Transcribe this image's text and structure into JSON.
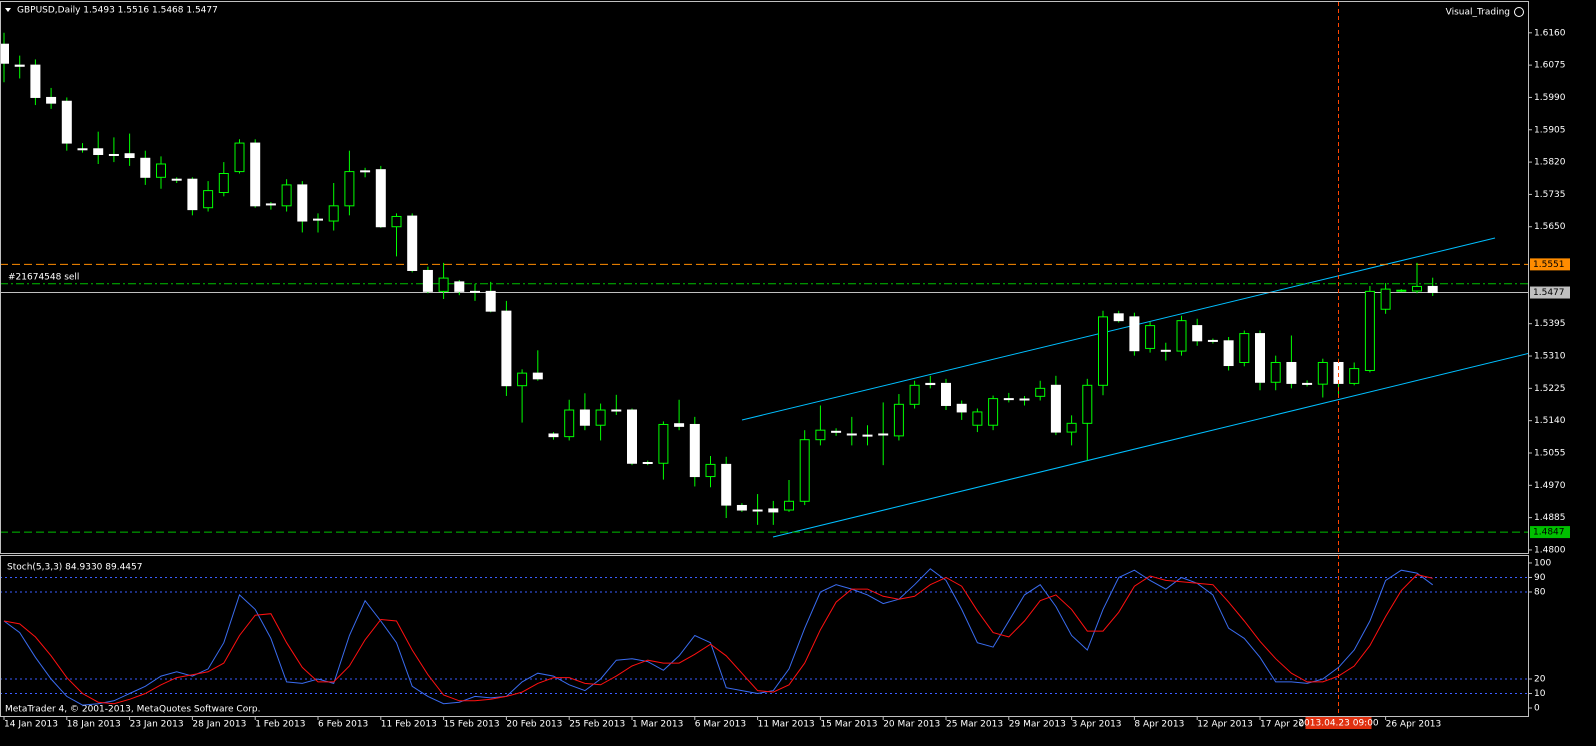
{
  "chart_data": [
    {
      "type": "candlestick",
      "title": "GBPUSD,Daily  1.5493 1.5516 1.5468 1.5477",
      "expert_label": "Visual_Trading",
      "cursor_label": "2013.04.23 09:00",
      "categories": [
        "14 Jan 2013",
        null,
        null,
        null,
        "18 Jan 2013",
        null,
        null,
        null,
        "23 Jan 2013",
        null,
        null,
        null,
        "28 Jan 2013",
        null,
        null,
        null,
        "1 Feb 2013",
        null,
        null,
        null,
        "6 Feb 2013",
        null,
        null,
        null,
        "11 Feb 2013",
        null,
        null,
        null,
        "15 Feb 2013",
        null,
        null,
        null,
        "20 Feb 2013",
        null,
        null,
        null,
        "25 Feb 2013",
        null,
        null,
        null,
        "1 Mar 2013",
        null,
        null,
        null,
        "6 Mar 2013",
        null,
        null,
        null,
        "11 Mar 2013",
        null,
        null,
        null,
        "15 Mar 2013",
        null,
        null,
        null,
        "20 Mar 2013",
        null,
        null,
        null,
        "25 Mar 2013",
        null,
        null,
        null,
        "29 Mar 2013",
        null,
        null,
        null,
        "3 Apr 2013",
        null,
        null,
        null,
        "8 Apr 2013",
        null,
        null,
        null,
        "12 Apr 2013",
        null,
        null,
        null,
        "17 Apr 2013",
        null,
        null,
        null,
        null,
        null,
        null,
        null,
        "26 Apr 2013",
        null,
        null,
        null
      ],
      "open": [
        1.613,
        1.6075,
        1.6075,
        1.599,
        1.598,
        1.5855,
        1.5855,
        1.584,
        1.5842,
        1.583,
        1.578,
        1.5775,
        1.5775,
        1.57,
        1.574,
        1.5795,
        1.587,
        1.571,
        1.5705,
        1.576,
        1.567,
        1.5665,
        1.5705,
        1.5797,
        1.58,
        1.565,
        1.5678,
        1.5535,
        1.548,
        1.5505,
        1.548,
        1.548,
        1.5428,
        1.5232,
        1.5265,
        1.5105,
        1.5098,
        1.5168,
        1.5128,
        1.5168,
        1.5168,
        1.503,
        1.5028,
        1.5132,
        1.513,
        1.4993,
        1.5025,
        1.4917,
        1.4905,
        1.4908,
        1.4905,
        1.4928,
        1.509,
        1.5112,
        1.5105,
        1.5102,
        1.5105,
        1.51,
        1.5183,
        1.5238,
        1.5238,
        1.5183,
        1.5128,
        1.5128,
        1.5198,
        1.5197,
        1.5204,
        1.5233,
        1.511,
        1.5133,
        1.5233,
        1.5421,
        1.5413,
        1.533,
        1.5325,
        1.5323,
        1.539,
        1.5351,
        1.535,
        1.5293,
        1.5369,
        1.5241,
        1.5293,
        1.5238,
        1.5236,
        1.5293,
        1.5238,
        1.5272,
        1.5433,
        1.5481,
        1.5481,
        1.5493
      ],
      "high": [
        1.616,
        1.61,
        1.609,
        1.6015,
        1.599,
        1.587,
        1.59,
        1.5885,
        1.5895,
        1.585,
        1.5835,
        1.578,
        1.578,
        1.577,
        1.582,
        1.588,
        1.588,
        1.5715,
        1.5775,
        1.577,
        1.5685,
        1.5765,
        1.585,
        1.5805,
        1.581,
        1.5685,
        1.5685,
        1.5545,
        1.5555,
        1.551,
        1.55,
        1.5505,
        1.5455,
        1.5275,
        1.5325,
        1.511,
        1.5195,
        1.5212,
        1.5185,
        1.5208,
        1.5172,
        1.5035,
        1.5138,
        1.5195,
        1.515,
        1.5047,
        1.5045,
        1.4923,
        1.4947,
        1.4929,
        1.4984,
        1.5115,
        1.518,
        1.512,
        1.515,
        1.5128,
        1.5188,
        1.521,
        1.5245,
        1.5258,
        1.525,
        1.5193,
        1.5172,
        1.5206,
        1.5213,
        1.5205,
        1.5245,
        1.5258,
        1.5154,
        1.525,
        1.5429,
        1.5429,
        1.5424,
        1.54,
        1.5345,
        1.5416,
        1.5408,
        1.5356,
        1.536,
        1.5377,
        1.5377,
        1.5311,
        1.5364,
        1.5246,
        1.5303,
        1.5303,
        1.5293,
        1.5494,
        1.5502,
        1.5486,
        1.5555,
        1.5516
      ],
      "low": [
        1.603,
        1.604,
        1.597,
        1.596,
        1.585,
        1.5845,
        1.5815,
        1.582,
        1.581,
        1.576,
        1.575,
        1.5765,
        1.568,
        1.569,
        1.573,
        1.579,
        1.57,
        1.5695,
        1.569,
        1.5635,
        1.5635,
        1.564,
        1.568,
        1.578,
        1.5647,
        1.5572,
        1.553,
        1.5475,
        1.546,
        1.547,
        1.5455,
        1.5425,
        1.5205,
        1.5135,
        1.5245,
        1.509,
        1.5088,
        1.5115,
        1.5088,
        1.5155,
        1.5023,
        1.5023,
        1.4985,
        1.5115,
        1.4967,
        1.4965,
        1.4884,
        1.49,
        1.4866,
        1.4866,
        1.49,
        1.4918,
        1.5075,
        1.51,
        1.5075,
        1.5075,
        1.5023,
        1.5088,
        1.5172,
        1.5225,
        1.5168,
        1.5142,
        1.511,
        1.5115,
        1.5188,
        1.518,
        1.5193,
        1.5102,
        1.5075,
        1.5035,
        1.5207,
        1.5398,
        1.5311,
        1.5319,
        1.5298,
        1.5311,
        1.5337,
        1.5343,
        1.5272,
        1.5283,
        1.522,
        1.522,
        1.5225,
        1.523,
        1.5201,
        1.5207,
        1.5233,
        1.5267,
        1.5421,
        1.5478,
        1.5475,
        1.5468
      ],
      "close": [
        1.608,
        1.6072,
        1.599,
        1.5975,
        1.587,
        1.5853,
        1.584,
        1.5838,
        1.5832,
        1.578,
        1.5815,
        1.5773,
        1.5695,
        1.5745,
        1.579,
        1.587,
        1.5705,
        1.5708,
        1.576,
        1.5665,
        1.5668,
        1.5705,
        1.5795,
        1.5795,
        1.565,
        1.5677,
        1.5535,
        1.548,
        1.5515,
        1.548,
        1.5478,
        1.5428,
        1.5232,
        1.5265,
        1.525,
        1.5098,
        1.5168,
        1.5128,
        1.5168,
        1.5166,
        1.5028,
        1.5028,
        1.513,
        1.5125,
        1.4993,
        1.5025,
        1.4918,
        1.4905,
        1.4903,
        1.49,
        1.4928,
        1.509,
        1.5115,
        1.511,
        1.5103,
        1.51,
        1.5103,
        1.5183,
        1.5233,
        1.5235,
        1.518,
        1.5163,
        1.5163,
        1.5198,
        1.5196,
        1.5195,
        1.5225,
        1.511,
        1.5133,
        1.5233,
        1.5413,
        1.5403,
        1.5324,
        1.539,
        1.5323,
        1.5403,
        1.535,
        1.5349,
        1.5285,
        1.5369,
        1.5241,
        1.5293,
        1.5238,
        1.5236,
        1.5293,
        1.5238,
        1.5277,
        1.548,
        1.5486,
        1.5483,
        1.5493,
        1.5477
      ],
      "bull_color": "#000000",
      "bear_color": "#ffffff",
      "wick_color": "#00ff00",
      "ylim": [
        1.4792,
        1.6241
      ],
      "yticks": [
        {
          "value": 1.616,
          "label": "1.6160"
        },
        {
          "value": 1.6075,
          "label": "1.6075"
        },
        {
          "value": 1.599,
          "label": "1.5990"
        },
        {
          "value": 1.5905,
          "label": "1.5905"
        },
        {
          "value": 1.582,
          "label": "1.5820"
        },
        {
          "value": 1.5735,
          "label": "1.5735"
        },
        {
          "value": 1.565,
          "label": "1.5650"
        },
        {
          "value": 1.5395,
          "label": "1.5395"
        },
        {
          "value": 1.531,
          "label": "1.5310"
        },
        {
          "value": 1.5225,
          "label": "1.5225"
        },
        {
          "value": 1.514,
          "label": "1.5140"
        },
        {
          "value": 1.5055,
          "label": "1.5055"
        },
        {
          "value": 1.497,
          "label": "1.4970"
        },
        {
          "value": 1.4885,
          "label": "1.4885"
        },
        {
          "value": 1.48,
          "label": "1.4800"
        }
      ],
      "levels": [
        {
          "value": 1.5551,
          "color": "#ff8c00",
          "style": "dashed",
          "axis_label": true
        },
        {
          "value": 1.55,
          "color": "#00c000",
          "style": "dashdot",
          "name": "#21674548 sell"
        },
        {
          "value": 1.5477,
          "color": "#c0c0c0",
          "style": "solid",
          "axis_label": true
        },
        {
          "value": 1.4847,
          "color": "#00c000",
          "style": "dashed",
          "axis_label": true
        }
      ],
      "grid": false
    },
    {
      "type": "line",
      "title": "Stoch(5,3,3) 84.9330 89.4457",
      "copyright": "MetaTrader 4, © 2001-2013, MetaQuotes Software Corp.",
      "series": [
        {
          "color": "#3a6cf0",
          "values": [
            60,
            52,
            35,
            20,
            8,
            2,
            3,
            5,
            10,
            15,
            22,
            25,
            22,
            27,
            45,
            78,
            68,
            48,
            18,
            17,
            20,
            17,
            50,
            74,
            60,
            45,
            15,
            8,
            3,
            4,
            8,
            7,
            8,
            18,
            24,
            22,
            16,
            12,
            20,
            33,
            34,
            32,
            26,
            36,
            50,
            45,
            14,
            12,
            10,
            12,
            27,
            55,
            80,
            85,
            82,
            78,
            72,
            75,
            85,
            96,
            88,
            68,
            45,
            42,
            60,
            78,
            85,
            70,
            50,
            40,
            68,
            90,
            95,
            88,
            82,
            90,
            86,
            78,
            55,
            48,
            35,
            18,
            18,
            17,
            20,
            28,
            40,
            60,
            88,
            95,
            93,
            84.933
          ]
        },
        {
          "color": "#ff1010",
          "values": [
            60,
            58,
            49,
            36,
            21,
            10,
            4,
            3,
            6,
            10,
            16,
            21,
            23,
            25,
            31,
            50,
            64,
            65,
            45,
            28,
            18,
            18,
            29,
            47,
            61,
            60,
            40,
            23,
            9,
            5,
            5,
            6,
            8,
            11,
            17,
            21,
            21,
            17,
            16,
            22,
            29,
            33,
            31,
            31,
            37,
            44,
            36,
            24,
            12,
            11,
            16,
            31,
            54,
            73,
            82,
            82,
            77,
            75,
            77,
            85,
            90,
            84,
            67,
            52,
            49,
            60,
            74,
            78,
            68,
            53,
            53,
            66,
            84,
            91,
            88,
            87,
            86,
            85,
            73,
            60,
            46,
            34,
            24,
            18,
            18,
            22,
            29,
            43,
            63,
            81,
            92,
            89.4457
          ]
        }
      ],
      "ylim": [
        -5.5,
        104.8
      ],
      "yticks": [
        0,
        10,
        20,
        80,
        90,
        100
      ],
      "levels": [
        10,
        20,
        80,
        90
      ],
      "level_color": "#3a5cff"
    }
  ]
}
